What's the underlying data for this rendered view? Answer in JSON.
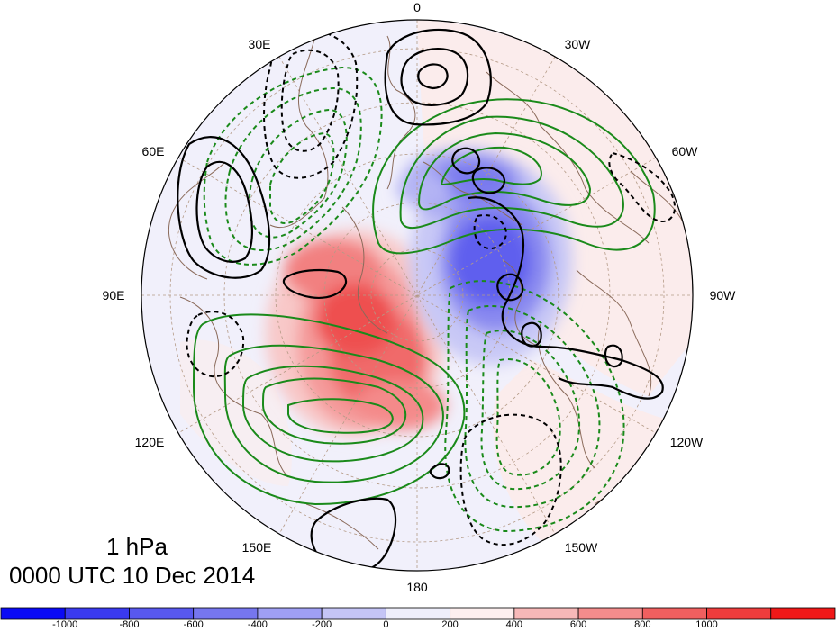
{
  "map": {
    "projection": "north polar stereographic",
    "background_colors": {
      "ocean_neutral": "#f1f0fb",
      "land_outline": "#8a6a5a",
      "grid": "#b49a86"
    },
    "longitude_labels": [
      {
        "text": "0",
        "lon": 0
      },
      {
        "text": "30W",
        "lon": -30
      },
      {
        "text": "60W",
        "lon": -60
      },
      {
        "text": "90W",
        "lon": -90
      },
      {
        "text": "120W",
        "lon": -120
      },
      {
        "text": "150W",
        "lon": -150
      },
      {
        "text": "180",
        "lon": 180
      },
      {
        "text": "150E",
        "lon": 150
      },
      {
        "text": "120E",
        "lon": 120
      },
      {
        "text": "90E",
        "lon": 90
      },
      {
        "text": "60E",
        "lon": 60
      },
      {
        "text": "30E",
        "lon": 30
      }
    ],
    "contour_colors": {
      "positive_black": "#000000",
      "negative_black": "#000000",
      "positive_green": "#1a8a1a",
      "negative_green": "#1a8a1a"
    },
    "shading_colors": {
      "red": "#f04040",
      "blue": "#4a4af0"
    }
  },
  "annotation": {
    "level": "1 hPa",
    "time": "0000 UTC 10 Dec 2014"
  },
  "colorbar": {
    "colors": [
      "#0a0af5",
      "#3a3aef",
      "#5858ee",
      "#7676ef",
      "#9f9ff4",
      "#c4c4f6",
      "#eeeefb",
      "#fdefef",
      "#f7b8b8",
      "#f38c8c",
      "#f05f5f",
      "#ee3c3c",
      "#f01818"
    ],
    "tick_labels": [
      "-1000",
      "-800",
      "-600",
      "-400",
      "-200",
      "0",
      "200",
      "400",
      "600",
      "800",
      "1000"
    ]
  }
}
